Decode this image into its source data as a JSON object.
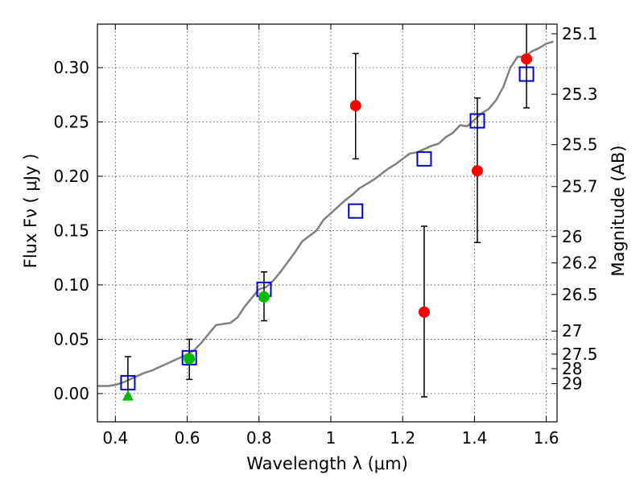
{
  "chart_data": {
    "type": "scatter",
    "xlabel": "Wavelength  λ (μm)",
    "ylabel": "Flux  Fν  ( μJy )",
    "y2label": "Magnitude (AB)",
    "xlim": [
      0.35,
      1.63
    ],
    "ylim": [
      -0.026,
      0.34
    ],
    "grid": true,
    "x_ticks": [
      {
        "value": 0.4,
        "label": "0.4"
      },
      {
        "value": 0.6,
        "label": "0.6"
      },
      {
        "value": 0.8,
        "label": "0.8"
      },
      {
        "value": 1.0,
        "label": "1"
      },
      {
        "value": 1.2,
        "label": "1.2"
      },
      {
        "value": 1.4,
        "label": "1.4"
      },
      {
        "value": 1.6,
        "label": "1.6"
      }
    ],
    "y_ticks": [
      {
        "value": 0.0,
        "label": "0.00"
      },
      {
        "value": 0.05,
        "label": "0.05"
      },
      {
        "value": 0.1,
        "label": "0.10"
      },
      {
        "value": 0.15,
        "label": "0.15"
      },
      {
        "value": 0.2,
        "label": "0.20"
      },
      {
        "value": 0.25,
        "label": "0.25"
      },
      {
        "value": 0.3,
        "label": "0.30"
      }
    ],
    "y2_ticks": [
      "25.1",
      "25.3",
      "25.5",
      "25.7",
      "26",
      "26.2",
      "26.5",
      "27",
      "27.5",
      "28",
      "29"
    ],
    "series": [
      {
        "kind": "line",
        "color": "#808080",
        "x": [
          0.35,
          0.38,
          0.4,
          0.42,
          0.44,
          0.46,
          0.48,
          0.5,
          0.52,
          0.54,
          0.56,
          0.58,
          0.6,
          0.62,
          0.64,
          0.66,
          0.68,
          0.7,
          0.72,
          0.74,
          0.76,
          0.78,
          0.8,
          0.82,
          0.84,
          0.86,
          0.88,
          0.9,
          0.92,
          0.94,
          0.96,
          0.98,
          1.0,
          1.02,
          1.04,
          1.06,
          1.08,
          1.1,
          1.12,
          1.14,
          1.16,
          1.18,
          1.2,
          1.22,
          1.24,
          1.26,
          1.28,
          1.3,
          1.32,
          1.34,
          1.36,
          1.38,
          1.4,
          1.42,
          1.44,
          1.46,
          1.48,
          1.5,
          1.52,
          1.54,
          1.56,
          1.58,
          1.6,
          1.62
        ],
        "y": [
          0.007,
          0.007,
          0.008,
          0.01,
          0.013,
          0.016,
          0.019,
          0.021,
          0.024,
          0.027,
          0.03,
          0.033,
          0.036,
          0.04,
          0.047,
          0.055,
          0.063,
          0.064,
          0.065,
          0.07,
          0.08,
          0.088,
          0.096,
          0.098,
          0.104,
          0.112,
          0.121,
          0.13,
          0.14,
          0.145,
          0.15,
          0.16,
          0.166,
          0.172,
          0.178,
          0.183,
          0.189,
          0.193,
          0.197,
          0.202,
          0.207,
          0.211,
          0.216,
          0.221,
          0.222,
          0.225,
          0.228,
          0.23,
          0.236,
          0.24,
          0.247,
          0.246,
          0.252,
          0.258,
          0.262,
          0.27,
          0.282,
          0.3,
          0.31,
          0.31,
          0.315,
          0.318,
          0.322,
          0.324
        ]
      },
      {
        "kind": "marker",
        "marker": "square-open",
        "color": "#0000cc",
        "x": [
          0.435,
          0.606,
          0.814,
          1.069,
          1.26,
          1.408,
          1.545
        ],
        "y": [
          0.01,
          0.033,
          0.096,
          0.168,
          0.216,
          0.251,
          0.294
        ]
      },
      {
        "kind": "marker",
        "marker": "circle",
        "color": "#ff0000",
        "x": [
          1.069,
          1.26,
          1.408,
          1.545
        ],
        "y": [
          0.265,
          0.075,
          0.205,
          0.308
        ],
        "err_low": [
          0.216,
          -0.003,
          0.139,
          0.263
        ],
        "err_high": [
          0.313,
          0.154,
          0.272,
          0.345
        ]
      },
      {
        "kind": "marker",
        "marker": "circle",
        "color": "#00bb00",
        "x": [
          0.606,
          0.814
        ],
        "y": [
          0.032,
          0.089
        ],
        "err_low": [
          0.013,
          0.067
        ],
        "err_high": [
          0.05,
          0.112
        ]
      },
      {
        "kind": "marker",
        "marker": "triangle",
        "color": "#00bb00",
        "x": [
          0.435
        ],
        "y": [
          -0.002
        ],
        "err_low": [
          -0.002
        ],
        "err_high": [
          0.034
        ]
      }
    ]
  }
}
